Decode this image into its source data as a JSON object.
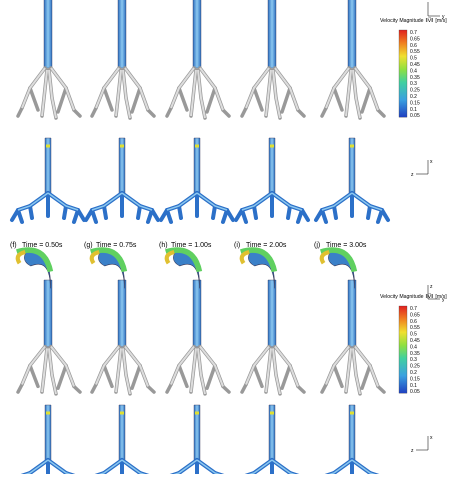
{
  "panels": [
    {
      "label": "(f)",
      "time": "Time = 0.50s"
    },
    {
      "label": "(g)",
      "time": "Time = 0.75s"
    },
    {
      "label": "(h)",
      "time": "Time = 1.00s"
    },
    {
      "label": "(i)",
      "time": "Time = 2.00s"
    },
    {
      "label": "(j)",
      "time": "Time = 3.00s"
    }
  ],
  "legends": [
    {
      "title": "Velocity Magnitude",
      "symbol": "‖V⃗‖",
      "unit": "[m/s]",
      "ticks": [
        "0.7",
        "0.65",
        "0.6",
        "0.55",
        "0.5",
        "0.45",
        "0.4",
        "0.35",
        "0.3",
        "0.25",
        "0.2",
        "0.15",
        "0.1",
        "0.05"
      ]
    },
    {
      "title": "Velocity Magnitude",
      "symbol": "‖V⃗‖",
      "unit": "[m/s]",
      "ticks": [
        "0.7",
        "0.65",
        "0.6",
        "0.55",
        "0.5",
        "0.45",
        "0.4",
        "0.35",
        "0.3",
        "0.25",
        "0.2",
        "0.15",
        "0.1",
        "0.05"
      ]
    }
  ],
  "triads": [
    {
      "up": "",
      "side": "y"
    },
    {
      "up": "x",
      "side": "z"
    },
    {
      "up": "z",
      "side": "y"
    },
    {
      "up": "x",
      "side": "z"
    }
  ]
}
